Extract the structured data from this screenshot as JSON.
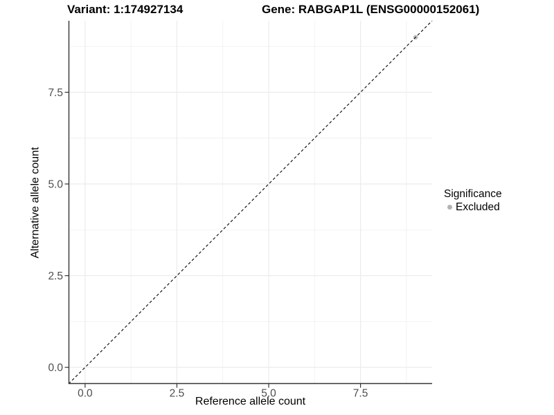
{
  "chart_data": {
    "type": "scatter",
    "titles": {
      "variant": "Variant: 1:174927134",
      "gene": "Gene: RABGAP1L (ENSG00000152061)"
    },
    "xlabel": "Reference allele count",
    "ylabel": "Alternative allele count",
    "xlim": [
      -0.45,
      9.45
    ],
    "ylim": [
      -0.45,
      9.45
    ],
    "x_ticks": [
      0,
      2.5,
      5,
      7.5
    ],
    "y_ticks": [
      0,
      2.5,
      5,
      7.5
    ],
    "x_tick_labels": [
      "0.0",
      "2.5",
      "5.0",
      "7.5"
    ],
    "y_tick_labels": [
      "0.0",
      "2.5",
      "5.0",
      "7.5"
    ],
    "x_minor_ticks": [
      1.25,
      3.75,
      6.25,
      8.75
    ],
    "y_minor_ticks": [
      1.25,
      3.75,
      6.25,
      8.75
    ],
    "grid": true,
    "aspect": "equal",
    "reference_line": {
      "kind": "identity",
      "slope": 1,
      "intercept": 0,
      "style": "dashed",
      "color": "#000000"
    },
    "series": [
      {
        "name": "Excluded",
        "color": "#bfbfbf",
        "points": [
          {
            "x": 9,
            "y": 9
          }
        ]
      }
    ],
    "legend": {
      "title": "Significance",
      "position": "right",
      "items": [
        {
          "label": "Excluded",
          "color": "#b3b3b3"
        }
      ]
    },
    "colors": {
      "background": "#ffffff",
      "gridline_major": "#ebebeb",
      "gridline_minor": "#efefef",
      "axis_line": "#333333",
      "tick_mark": "#333333",
      "tick_label": "#4d4d4d",
      "text": "#000000"
    }
  }
}
